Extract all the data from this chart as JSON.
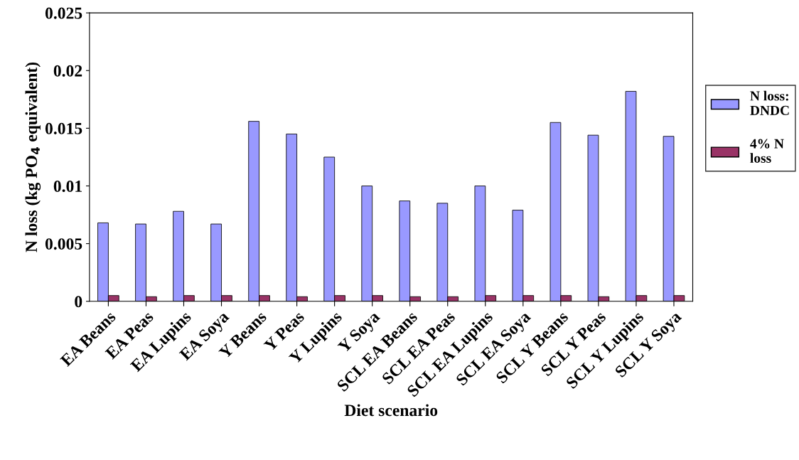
{
  "chart_data": {
    "type": "bar",
    "xlabel": "Diet scenario",
    "ylabel": "N loss (kg PO$_{4}$ equivalent)",
    "categories": [
      "EA Beans",
      "EA Peas",
      "EA Lupins",
      "EA Soya",
      "Y Beans",
      "Y Peas",
      "Y Lupins",
      "Y Soya",
      "SCL EA Beans",
      "SCL EA Peas",
      "SCL EA Lupins",
      "SCL EA Soya",
      "SCL Y Beans",
      "SCL Y Peas",
      "SCL Y Lupins",
      "SCL Y Soya"
    ],
    "series": [
      {
        "name": "N loss: DNDC",
        "color": "#9999ff",
        "values": [
          0.0068,
          0.0067,
          0.0078,
          0.0067,
          0.0156,
          0.0145,
          0.0125,
          0.01,
          0.0087,
          0.0085,
          0.01,
          0.0079,
          0.0155,
          0.0144,
          0.0182,
          0.0143
        ]
      },
      {
        "name": "4% N loss",
        "color": "#993366",
        "values": [
          0.0005,
          0.0004,
          0.0005,
          0.0005,
          0.0005,
          0.0004,
          0.0005,
          0.0005,
          0.0004,
          0.0004,
          0.0005,
          0.0005,
          0.0005,
          0.0004,
          0.0005,
          0.0005
        ]
      }
    ],
    "ylim": [
      0,
      0.025
    ],
    "yticks": [
      {
        "value": 0,
        "label": "0"
      },
      0.005,
      0.01,
      0.015,
      0.02,
      0.025
    ],
    "grid": false,
    "legend": "right"
  }
}
